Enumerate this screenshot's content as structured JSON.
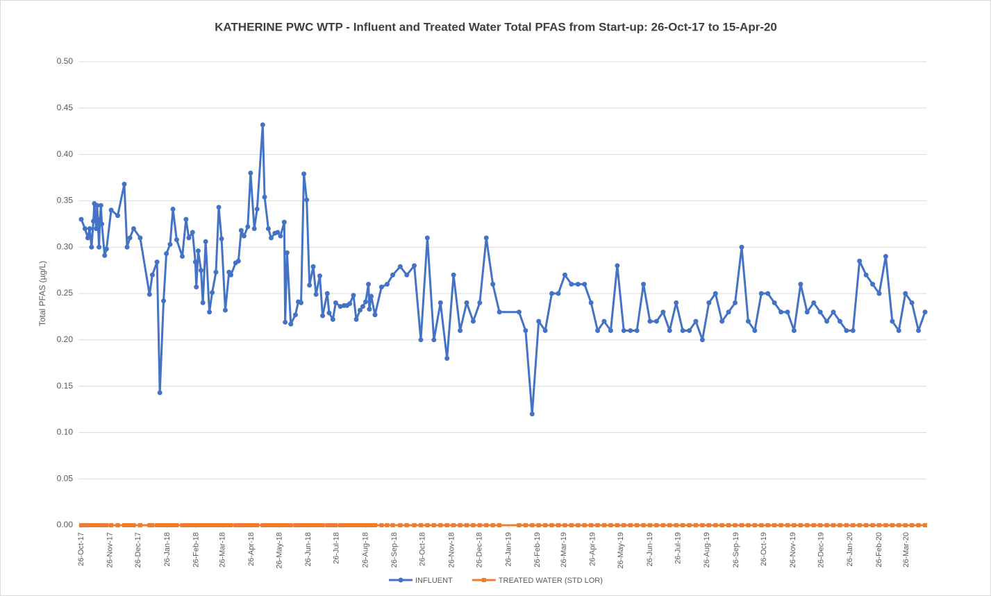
{
  "chart_data": {
    "type": "line",
    "title": "KATHERINE PWC WTP - Influent and Treated Water Total PFAS from Start-up: 26-Oct-17 to 15-Apr-20",
    "y_label": "Total PFAS (µg/L)",
    "legend": "bottom",
    "grid": true,
    "ylim": [
      0,
      0.5
    ],
    "yticks": [
      {
        "value": 0,
        "label": "0.00"
      },
      {
        "value": 0.05,
        "label": "0.05"
      },
      {
        "value": 0.1,
        "label": "0.10"
      },
      {
        "value": 0.15,
        "label": "0.15"
      },
      {
        "value": 0.2,
        "label": "0.20"
      },
      {
        "value": 0.25,
        "label": "0.25"
      },
      {
        "value": 0.3,
        "label": "0.30"
      },
      {
        "value": 0.35,
        "label": "0.35"
      },
      {
        "value": 0.4,
        "label": "0.40"
      },
      {
        "value": 0.45,
        "label": "0.45"
      },
      {
        "value": 0.5,
        "label": "0.50"
      }
    ],
    "xlim": [
      "2017-10-26",
      "2020-04-15"
    ],
    "xticks": [
      {
        "value": "2017-10-26",
        "label": "26-Oct-17"
      },
      {
        "value": "2017-11-26",
        "label": "26-Nov-17"
      },
      {
        "value": "2017-12-26",
        "label": "26-Dec-17"
      },
      {
        "value": "2018-01-26",
        "label": "26-Jan-18"
      },
      {
        "value": "2018-02-26",
        "label": "26-Feb-18"
      },
      {
        "value": "2018-03-26",
        "label": "26-Mar-18"
      },
      {
        "value": "2018-04-26",
        "label": "26-Apr-18"
      },
      {
        "value": "2018-05-26",
        "label": "26-May-18"
      },
      {
        "value": "2018-06-26",
        "label": "26-Jun-18"
      },
      {
        "value": "2018-07-26",
        "label": "26-Jul-18"
      },
      {
        "value": "2018-08-26",
        "label": "26-Aug-18"
      },
      {
        "value": "2018-09-26",
        "label": "26-Sep-18"
      },
      {
        "value": "2018-10-26",
        "label": "26-Oct-18"
      },
      {
        "value": "2018-11-26",
        "label": "26-Nov-18"
      },
      {
        "value": "2018-12-26",
        "label": "26-Dec-18"
      },
      {
        "value": "2019-01-26",
        "label": "26-Jan-19"
      },
      {
        "value": "2019-02-26",
        "label": "26-Feb-19"
      },
      {
        "value": "2019-03-26",
        "label": "26-Mar-19"
      },
      {
        "value": "2019-04-26",
        "label": "26-Apr-19"
      },
      {
        "value": "2019-05-26",
        "label": "26-May-19"
      },
      {
        "value": "2019-06-26",
        "label": "26-Jun-19"
      },
      {
        "value": "2019-07-26",
        "label": "26-Jul-19"
      },
      {
        "value": "2019-08-26",
        "label": "26-Aug-19"
      },
      {
        "value": "2019-09-26",
        "label": "26-Sep-19"
      },
      {
        "value": "2019-10-26",
        "label": "26-Oct-19"
      },
      {
        "value": "2019-11-26",
        "label": "26-Nov-19"
      },
      {
        "value": "2019-12-26",
        "label": "26-Dec-19"
      },
      {
        "value": "2020-01-26",
        "label": "26-Jan-20"
      },
      {
        "value": "2020-02-26",
        "label": "26-Feb-20"
      },
      {
        "value": "2020-03-26",
        "label": "26-Mar-20"
      }
    ],
    "x": [
      "2017-10-26",
      "2017-10-30",
      "2017-11-02",
      "2017-11-04",
      "2017-11-06",
      "2017-11-08",
      "2017-11-09",
      "2017-11-11",
      "2017-11-12",
      "2017-11-14",
      "2017-11-15",
      "2017-11-16",
      "2017-11-17",
      "2017-11-20",
      "2017-11-22",
      "2017-11-27",
      "2017-12-04",
      "2017-12-11",
      "2017-12-14",
      "2017-12-17",
      "2017-12-21",
      "2017-12-28",
      "2018-01-07",
      "2018-01-10",
      "2018-01-15",
      "2018-01-18",
      "2018-01-22",
      "2018-01-25",
      "2018-01-29",
      "2018-02-01",
      "2018-02-05",
      "2018-02-11",
      "2018-02-15",
      "2018-02-18",
      "2018-02-22",
      "2018-02-25",
      "2018-02-26",
      "2018-02-28",
      "2018-03-03",
      "2018-03-05",
      "2018-03-08",
      "2018-03-12",
      "2018-03-15",
      "2018-03-19",
      "2018-03-22",
      "2018-03-25",
      "2018-03-29",
      "2018-04-02",
      "2018-04-04",
      "2018-04-09",
      "2018-04-12",
      "2018-04-15",
      "2018-04-18",
      "2018-04-22",
      "2018-04-25",
      "2018-04-29",
      "2018-05-02",
      "2018-05-08",
      "2018-05-10",
      "2018-05-14",
      "2018-05-17",
      "2018-05-21",
      "2018-05-24",
      "2018-05-27",
      "2018-05-31",
      "2018-06-01",
      "2018-06-03",
      "2018-06-07",
      "2018-06-12",
      "2018-06-15",
      "2018-06-18",
      "2018-06-21",
      "2018-06-24",
      "2018-06-27",
      "2018-07-01",
      "2018-07-04",
      "2018-07-08",
      "2018-07-11",
      "2018-07-16",
      "2018-07-18",
      "2018-07-22",
      "2018-07-25",
      "2018-07-30",
      "2018-08-03",
      "2018-08-06",
      "2018-08-09",
      "2018-08-13",
      "2018-08-16",
      "2018-08-20",
      "2018-08-23",
      "2018-08-26",
      "2018-08-29",
      "2018-08-30",
      "2018-09-01",
      "2018-09-05",
      "2018-09-12",
      "2018-09-18",
      "2018-09-24",
      "2018-10-02",
      "2018-10-09",
      "2018-10-17",
      "2018-10-24",
      "2018-10-31",
      "2018-11-07",
      "2018-11-14",
      "2018-11-21",
      "2018-11-28",
      "2018-12-05",
      "2018-12-12",
      "2018-12-19",
      "2018-12-26",
      "2019-01-02",
      "2019-01-09",
      "2019-01-16",
      "2019-02-06",
      "2019-02-13",
      "2019-02-20",
      "2019-02-27",
      "2019-03-06",
      "2019-03-13",
      "2019-03-20",
      "2019-03-27",
      "2019-04-03",
      "2019-04-10",
      "2019-04-17",
      "2019-04-24",
      "2019-05-01",
      "2019-05-08",
      "2019-05-15",
      "2019-05-22",
      "2019-05-29",
      "2019-06-05",
      "2019-06-12",
      "2019-06-19",
      "2019-06-26",
      "2019-07-03",
      "2019-07-10",
      "2019-07-17",
      "2019-07-24",
      "2019-07-31",
      "2019-08-07",
      "2019-08-14",
      "2019-08-21",
      "2019-08-28",
      "2019-09-04",
      "2019-09-11",
      "2019-09-18",
      "2019-09-25",
      "2019-10-02",
      "2019-10-09",
      "2019-10-16",
      "2019-10-23",
      "2019-10-30",
      "2019-11-06",
      "2019-11-13",
      "2019-11-20",
      "2019-11-27",
      "2019-12-04",
      "2019-12-11",
      "2019-12-18",
      "2019-12-25",
      "2020-01-01",
      "2020-01-08",
      "2020-01-15",
      "2020-01-22",
      "2020-01-29",
      "2020-02-05",
      "2020-02-12",
      "2020-02-19",
      "2020-02-26",
      "2020-03-04",
      "2020-03-11",
      "2020-03-18",
      "2020-03-25",
      "2020-04-01",
      "2020-04-08",
      "2020-04-15"
    ],
    "series": [
      {
        "name": "INFLUENT",
        "color": "#4472c4",
        "marker": "circle",
        "values": [
          0.33,
          0.32,
          0.31,
          0.32,
          0.3,
          0.328,
          0.347,
          0.32,
          0.345,
          0.3,
          0.33,
          0.345,
          0.325,
          0.291,
          0.298,
          0.34,
          0.334,
          0.368,
          0.3,
          0.31,
          0.32,
          0.31,
          0.249,
          0.27,
          0.284,
          0.143,
          0.242,
          0.293,
          0.303,
          0.341,
          0.308,
          0.29,
          0.33,
          0.31,
          0.316,
          0.284,
          0.257,
          0.296,
          0.275,
          0.24,
          0.306,
          0.23,
          0.251,
          0.273,
          0.343,
          0.309,
          0.232,
          0.273,
          0.27,
          0.283,
          0.285,
          0.318,
          0.312,
          0.322,
          0.38,
          0.32,
          0.341,
          0.432,
          0.354,
          0.32,
          0.31,
          0.315,
          0.316,
          0.312,
          0.327,
          0.219,
          0.294,
          0.217,
          0.227,
          0.241,
          0.24,
          0.379,
          0.351,
          0.259,
          0.279,
          0.249,
          0.269,
          0.226,
          0.25,
          0.229,
          0.222,
          0.24,
          0.236,
          0.237,
          0.237,
          0.239,
          0.248,
          0.222,
          0.232,
          0.236,
          0.241,
          0.26,
          0.233,
          0.247,
          0.227,
          0.257,
          0.26,
          0.27,
          0.279,
          0.27,
          0.28,
          0.2,
          0.31,
          0.2,
          0.24,
          0.18,
          0.27,
          0.21,
          0.24,
          0.22,
          0.24,
          0.31,
          0.26,
          0.23,
          0.23,
          0.21,
          0.12,
          0.22,
          0.21,
          0.25,
          0.25,
          0.27,
          0.26,
          0.26,
          0.26,
          0.24,
          0.21,
          0.22,
          0.21,
          0.28,
          0.21,
          0.21,
          0.21,
          0.26,
          0.22,
          0.22,
          0.23,
          0.21,
          0.24,
          0.21,
          0.21,
          0.22,
          0.2,
          0.24,
          0.25,
          0.22,
          0.23,
          0.24,
          0.3,
          0.22,
          0.21,
          0.25,
          0.25,
          0.24,
          0.23,
          0.23,
          0.21,
          0.26,
          0.23,
          0.24,
          0.23,
          0.22,
          0.23,
          0.22,
          0.21,
          0.21,
          0.285,
          0.27,
          0.26,
          0.25,
          0.29,
          0.22,
          0.21,
          0.25,
          0.24,
          0.21,
          0.23
        ]
      },
      {
        "name": "TREATED WATER (STD LOR)",
        "color": "#ed7d31",
        "marker": "square",
        "values": [
          0,
          0,
          0,
          0,
          0,
          0,
          0,
          0,
          0,
          0,
          0,
          0,
          0,
          0,
          0,
          0,
          0,
          0,
          0,
          0,
          0,
          0,
          0,
          0,
          0,
          0,
          0,
          0,
          0,
          0,
          0,
          0,
          0,
          0,
          0,
          0,
          0,
          0,
          0,
          0,
          0,
          0,
          0,
          0,
          0,
          0,
          0,
          0,
          0,
          0,
          0,
          0,
          0,
          0,
          0,
          0,
          0,
          0,
          0,
          0,
          0,
          0,
          0,
          0,
          0,
          0,
          0,
          0,
          0,
          0,
          0,
          0,
          0,
          0,
          0,
          0,
          0,
          0,
          0,
          0,
          0,
          0,
          0,
          0,
          0,
          0,
          0,
          0,
          0,
          0,
          0,
          0,
          0,
          0,
          0,
          0,
          0,
          0,
          0,
          0,
          0,
          0,
          0,
          0,
          0,
          0,
          0,
          0,
          0,
          0,
          0,
          0,
          0,
          0,
          0,
          0,
          0,
          0,
          0,
          0,
          0,
          0,
          0,
          0,
          0,
          0,
          0,
          0,
          0,
          0,
          0,
          0,
          0,
          0,
          0,
          0,
          0,
          0,
          0,
          0,
          0,
          0,
          0,
          0,
          0,
          0,
          0,
          0,
          0,
          0,
          0,
          0,
          0,
          0,
          0,
          0,
          0,
          0,
          0,
          0,
          0,
          0,
          0,
          0,
          0,
          0,
          0,
          0,
          0,
          0,
          0,
          0,
          0,
          0,
          0,
          0,
          0
        ]
      }
    ]
  }
}
